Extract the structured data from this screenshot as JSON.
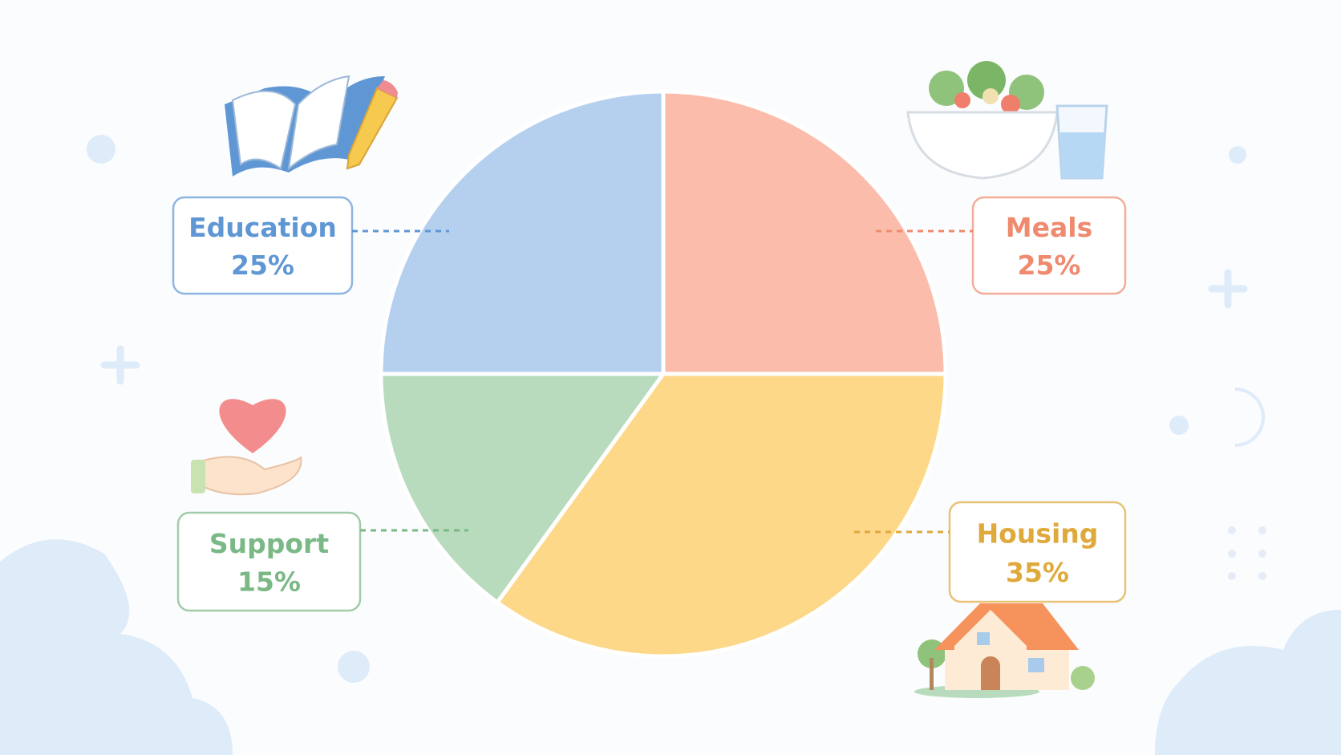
{
  "chart_data": {
    "type": "pie",
    "categories": [
      "Meals",
      "Housing",
      "Support",
      "Education"
    ],
    "values": [
      25,
      35,
      15,
      25
    ],
    "value_labels": [
      "25%",
      "35%",
      "15%",
      "25%"
    ],
    "colors": [
      "#fbbcab",
      "#fcd888",
      "#b8dbbe",
      "#b5d0ef"
    ],
    "label_colors": [
      "#ef8a6e",
      "#e0a93c",
      "#7ab885",
      "#5f97d4"
    ]
  }
}
